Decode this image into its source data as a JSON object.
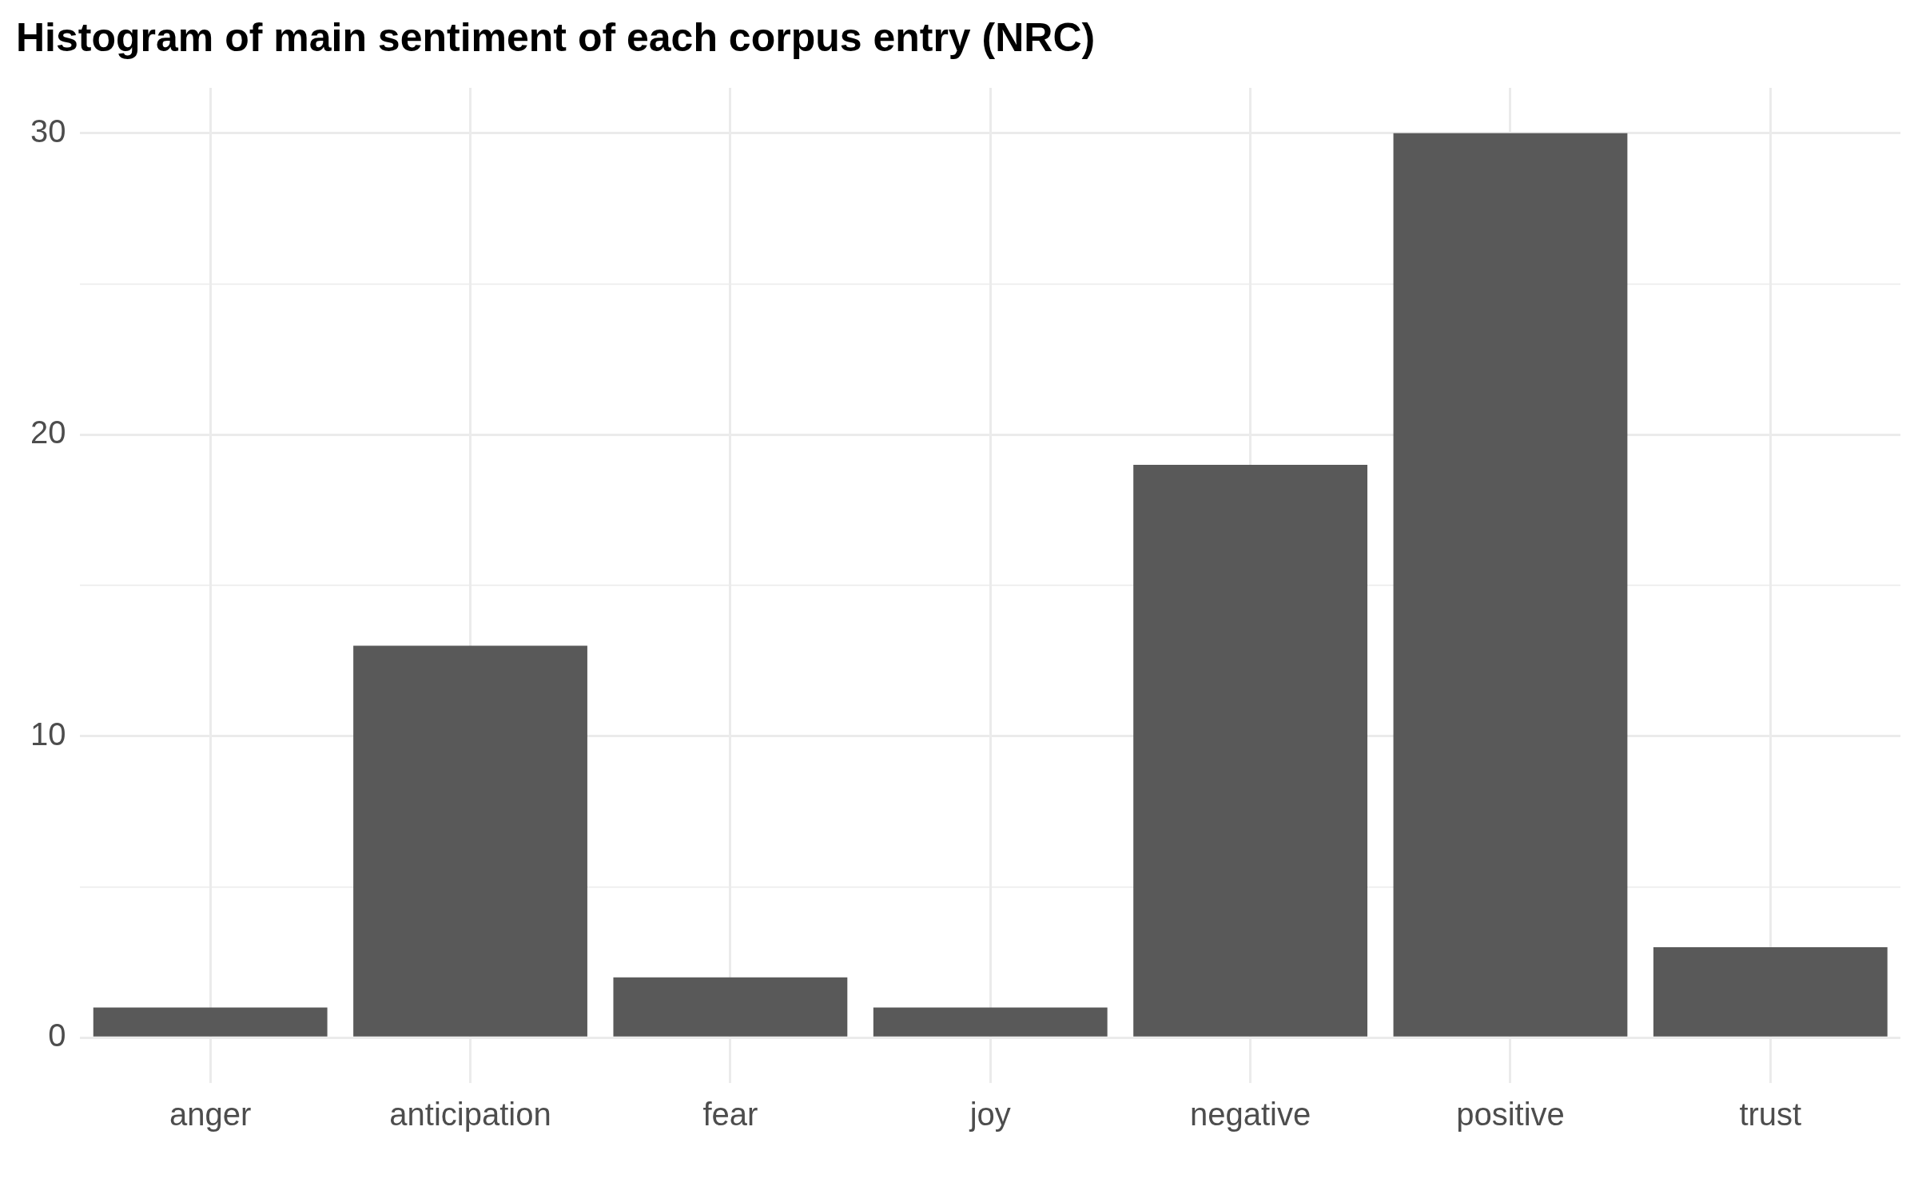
{
  "chart_data": {
    "type": "bar",
    "title": "Histogram of main sentiment of each corpus entry (NRC)",
    "categories": [
      "anger",
      "anticipation",
      "fear",
      "joy",
      "negative",
      "positive",
      "trust"
    ],
    "values": [
      1,
      13,
      2,
      1,
      19,
      30,
      3
    ],
    "color": "#595959",
    "ylim": [
      -1.5,
      31.5
    ],
    "yticks": [
      0,
      {
        "value": 5,
        "label": null
      },
      10,
      {
        "value": 15,
        "label": null
      },
      20,
      {
        "value": 25,
        "label": null
      },
      30
    ],
    "grid": true,
    "legend": false
  }
}
